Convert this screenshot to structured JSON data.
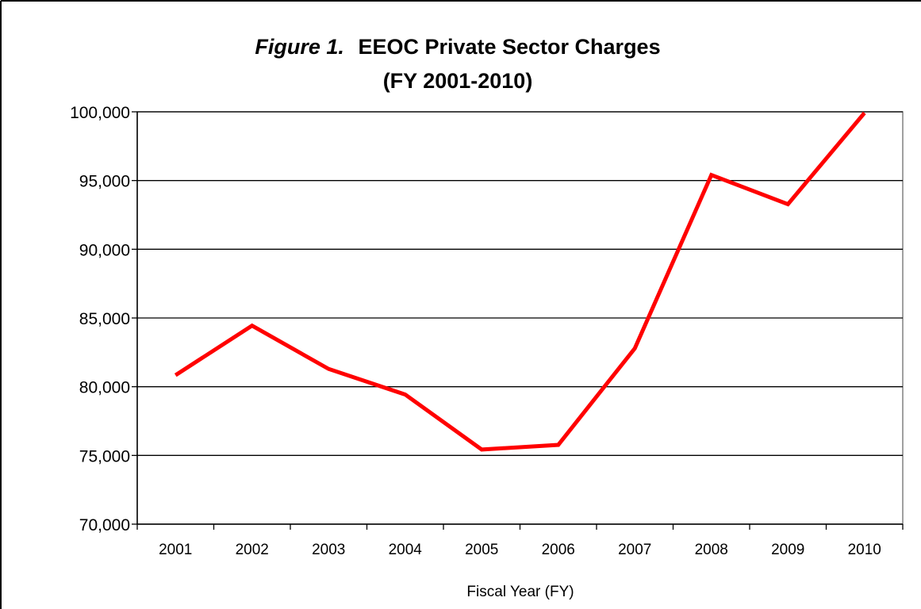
{
  "chart_data": {
    "type": "line",
    "title_prefix": "Figure 1.",
    "title_main": "EEOC Private Sector Charges",
    "subtitle": "(FY 2001-2010)",
    "xlabel": "Fiscal Year (FY)",
    "ylabel": "",
    "categories": [
      "2001",
      "2002",
      "2003",
      "2004",
      "2005",
      "2006",
      "2007",
      "2008",
      "2009",
      "2010"
    ],
    "series": [
      {
        "values": [
          80840,
          84442,
          81293,
          79432,
          75428,
          75768,
          82792,
          95402,
          93277,
          99922
        ]
      }
    ],
    "ylim": [
      70000,
      100000
    ],
    "ytick_values": [
      70000,
      75000,
      80000,
      85000,
      90000,
      95000,
      100000
    ],
    "ytick_labels": [
      "70,000",
      "75,000",
      "80,000",
      "85,000",
      "90,000",
      "95,000",
      "100,000"
    ],
    "grid": true,
    "legend": "none",
    "line_color": "#ff0000",
    "grid_color": "#000000"
  }
}
